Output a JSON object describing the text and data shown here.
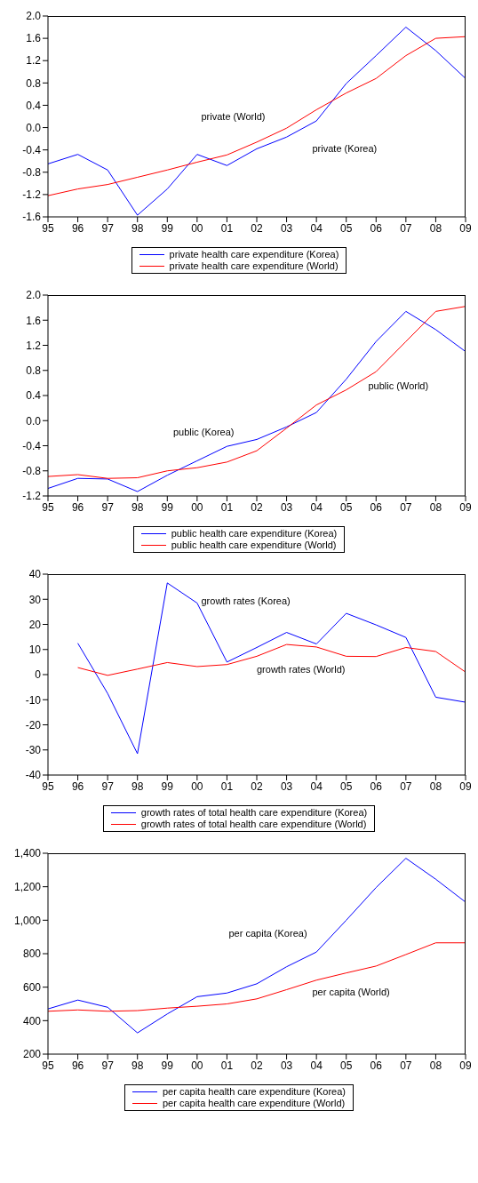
{
  "chart_data": [
    {
      "type": "line",
      "categories": [
        "95",
        "96",
        "97",
        "98",
        "99",
        "00",
        "01",
        "02",
        "03",
        "04",
        "05",
        "06",
        "07",
        "08",
        "09"
      ],
      "ylim": [
        -1.6,
        2.0
      ],
      "yticks": [
        {
          "value": -1.6,
          "label": "-1.6"
        },
        {
          "value": -1.2,
          "label": "-1.2"
        },
        {
          "value": -0.8,
          "label": "-0.8"
        },
        {
          "value": -0.4,
          "label": "-0.4"
        },
        {
          "value": 0,
          "label": "0.0"
        },
        {
          "value": 0.4,
          "label": "0.4"
        },
        {
          "value": 0.8,
          "label": "0.8"
        },
        {
          "value": 1.2,
          "label": "1.2"
        },
        {
          "value": 1.6,
          "label": "1.6"
        },
        {
          "value": 2,
          "label": "2.0"
        }
      ],
      "grid": false,
      "legend": "bottom",
      "marker": "none",
      "line_style": "solid",
      "series": [
        {
          "name": "private health care expenditure (Korea)",
          "color": "#0000ff",
          "values": [
            -0.65,
            -0.48,
            -0.76,
            -1.57,
            -1.1,
            -0.48,
            -0.68,
            -0.38,
            -0.17,
            0.12,
            0.79,
            1.29,
            1.8,
            1.38,
            0.88
          ]
        },
        {
          "name": "private health care expenditure (World)",
          "color": "#ff0000",
          "values": [
            -1.22,
            -1.1,
            -1.02,
            -0.89,
            -0.76,
            -0.62,
            -0.49,
            -0.26,
            -0.01,
            0.32,
            0.62,
            0.88,
            1.29,
            1.6,
            1.63
          ]
        }
      ],
      "annotations": [
        "private (World)",
        "private (Korea)"
      ]
    },
    {
      "type": "line",
      "categories": [
        "95",
        "96",
        "97",
        "98",
        "99",
        "00",
        "01",
        "02",
        "03",
        "04",
        "05",
        "06",
        "07",
        "08",
        "09"
      ],
      "ylim": [
        -1.2,
        2.0
      ],
      "yticks": [
        {
          "value": -1.2,
          "label": "-1.2"
        },
        {
          "value": -0.8,
          "label": "-0.8"
        },
        {
          "value": -0.4,
          "label": "-0.4"
        },
        {
          "value": 0,
          "label": "0.0"
        },
        {
          "value": 0.4,
          "label": "0.4"
        },
        {
          "value": 0.8,
          "label": "0.8"
        },
        {
          "value": 1.2,
          "label": "1.2"
        },
        {
          "value": 1.6,
          "label": "1.6"
        },
        {
          "value": 2,
          "label": "2.0"
        }
      ],
      "grid": false,
      "legend": "bottom",
      "marker": "none",
      "line_style": "solid",
      "series": [
        {
          "name": "public health care expenditure (Korea)",
          "color": "#0000ff",
          "values": [
            -1.08,
            -0.92,
            -0.93,
            -1.13,
            -0.87,
            -0.64,
            -0.41,
            -0.3,
            -0.1,
            0.13,
            0.66,
            1.26,
            1.74,
            1.45,
            1.1
          ]
        },
        {
          "name": "public health care expenditure (World)",
          "color": "#ff0000",
          "values": [
            -0.89,
            -0.86,
            -0.92,
            -0.91,
            -0.8,
            -0.75,
            -0.66,
            -0.48,
            -0.12,
            0.25,
            0.49,
            0.78,
            1.26,
            1.74,
            1.82
          ]
        }
      ],
      "annotations": [
        "public (World)",
        "public (Korea)"
      ]
    },
    {
      "type": "line",
      "categories": [
        "95",
        "96",
        "97",
        "98",
        "99",
        "00",
        "01",
        "02",
        "03",
        "04",
        "05",
        "06",
        "07",
        "08",
        "09"
      ],
      "ylim": [
        -40,
        40
      ],
      "yticks": [
        -40,
        -30,
        -20,
        -10,
        0,
        10,
        20,
        30,
        40
      ],
      "grid": false,
      "legend": "bottom",
      "marker": "none",
      "line_style": "solid",
      "series": [
        {
          "name": "growth rates of total health care expenditure (Korea)",
          "color": "#0000ff",
          "values": [
            null,
            12.5,
            -7.5,
            -31.5,
            36.5,
            28.5,
            5,
            10.8,
            16.8,
            12.2,
            24.4,
            19.8,
            14.8,
            -9,
            -11
          ]
        },
        {
          "name": "growth rates of total health care expenditure (World)",
          "color": "#ff0000",
          "values": [
            null,
            2.8,
            -0.3,
            2.2,
            4.8,
            3.2,
            4,
            7.3,
            12,
            11,
            7.3,
            7.2,
            10.8,
            9.2,
            1
          ]
        }
      ],
      "annotations": [
        "growth rates (Korea)",
        "growth rates (World)"
      ]
    },
    {
      "type": "line",
      "categories": [
        "95",
        "96",
        "97",
        "98",
        "99",
        "00",
        "01",
        "02",
        "03",
        "04",
        "05",
        "06",
        "07",
        "08",
        "09"
      ],
      "ylim": [
        200,
        1400
      ],
      "yticks": [
        200,
        400,
        600,
        800,
        {
          "value": 1000,
          "label": "1,000"
        },
        {
          "value": 1200,
          "label": "1,200"
        },
        {
          "value": 1400,
          "label": "1,400"
        }
      ],
      "grid": false,
      "legend": "bottom",
      "marker": "none",
      "line_style": "solid",
      "series": [
        {
          "name": "per capita health care expenditure (Korea)",
          "color": "#0000ff",
          "values": [
            470,
            523,
            480,
            327,
            440,
            543,
            565,
            620,
            722,
            810,
            1000,
            1195,
            1370,
            1245,
            1108
          ]
        },
        {
          "name": "per capita health care expenditure (World)",
          "color": "#ff0000",
          "values": [
            456,
            464,
            456,
            460,
            475,
            486,
            500,
            530,
            585,
            642,
            685,
            726,
            795,
            865,
            865
          ]
        }
      ],
      "annotations": [
        "per capita (Korea)",
        "per capita (World)"
      ]
    }
  ]
}
